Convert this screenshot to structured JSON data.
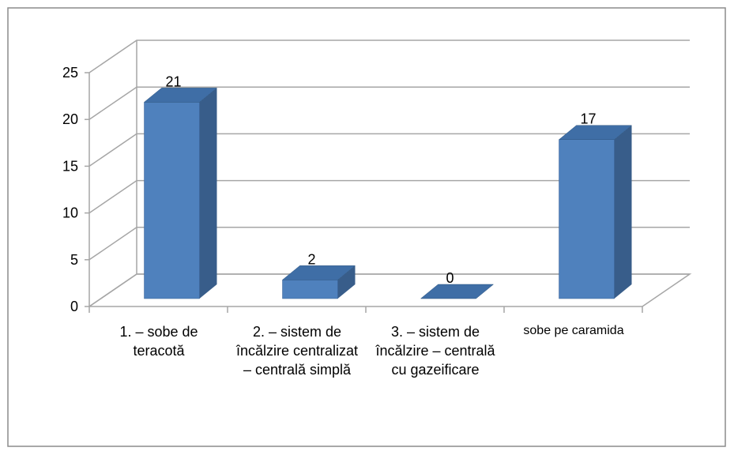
{
  "chart_data": {
    "type": "bar3d",
    "categories": [
      "1. – sobe de teracotă",
      "2. – sistem de încălzire centralizat – centrală simplă",
      "3. – sistem de încălzire – centrală cu gazeificare",
      "sobe pe caramida"
    ],
    "values": [
      21,
      2,
      0,
      17
    ],
    "color": "#4f81bd",
    "ylim": [
      0,
      25
    ],
    "yticks": [
      0,
      5,
      10,
      15,
      20,
      25
    ],
    "grid": true
  }
}
